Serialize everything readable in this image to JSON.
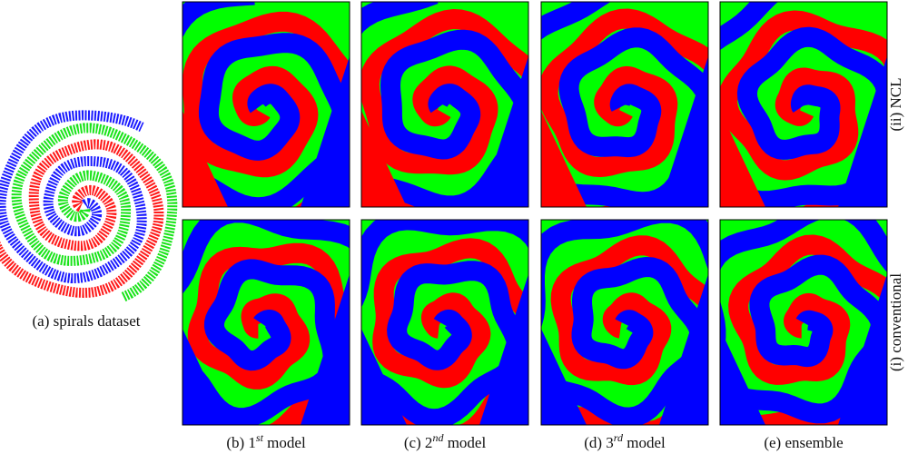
{
  "figure": {
    "dataset_caption": "(a) spirals dataset",
    "row_labels": [
      "(ii) NCL",
      "(i) conventional"
    ],
    "column_captions": [
      {
        "prefix": "(b) 1",
        "sup": "st",
        "suffix": " model"
      },
      {
        "prefix": "(c) 2",
        "sup": "nd",
        "suffix": " model"
      },
      {
        "prefix": "(d) 3",
        "sup": "rd",
        "suffix": " model"
      },
      {
        "prefix": "(e) ensemble"
      }
    ]
  }
}
